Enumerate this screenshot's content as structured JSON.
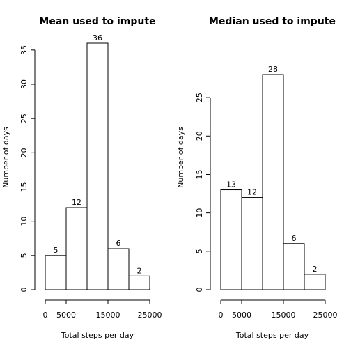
{
  "chart_data": [
    {
      "type": "bar",
      "title": "Mean used to impute",
      "xlabel": "Total steps per day",
      "ylabel": "Number of days",
      "bins": [
        [
          0,
          5000
        ],
        [
          5000,
          10000
        ],
        [
          10000,
          15000
        ],
        [
          15000,
          20000
        ],
        [
          20000,
          25000
        ]
      ],
      "values": [
        5,
        12,
        36,
        6,
        2
      ],
      "data_labels": [
        "5",
        "12",
        "36",
        "6",
        "2"
      ],
      "xlim": [
        0,
        25000
      ],
      "ylim": [
        0,
        36
      ],
      "xticks": [
        0,
        5000,
        15000,
        25000
      ],
      "xtick_labels": [
        "0",
        "5000",
        "15000",
        "25000"
      ],
      "yticks": [
        0,
        5,
        10,
        15,
        20,
        25,
        30,
        35
      ],
      "ytick_labels": [
        "0",
        "5",
        "10",
        "15",
        "20",
        "25",
        "30",
        "35"
      ],
      "grid": false
    },
    {
      "type": "bar",
      "title": "Median used to impute",
      "xlabel": "Total steps per day",
      "ylabel": "Number of days",
      "bins": [
        [
          0,
          5000
        ],
        [
          5000,
          10000
        ],
        [
          10000,
          15000
        ],
        [
          15000,
          20000
        ],
        [
          20000,
          25000
        ]
      ],
      "values": [
        13,
        12,
        28,
        6,
        2
      ],
      "data_labels": [
        "13",
        "12",
        "28",
        "6",
        "2"
      ],
      "xlim": [
        0,
        25000
      ],
      "ylim": [
        0,
        28
      ],
      "xticks": [
        0,
        5000,
        15000,
        25000
      ],
      "xtick_labels": [
        "0",
        "5000",
        "15000",
        "25000"
      ],
      "yticks": [
        0,
        5,
        10,
        15,
        20,
        25
      ],
      "ytick_labels": [
        "0",
        "5",
        "10",
        "15",
        "20",
        "25"
      ],
      "grid": false
    }
  ]
}
